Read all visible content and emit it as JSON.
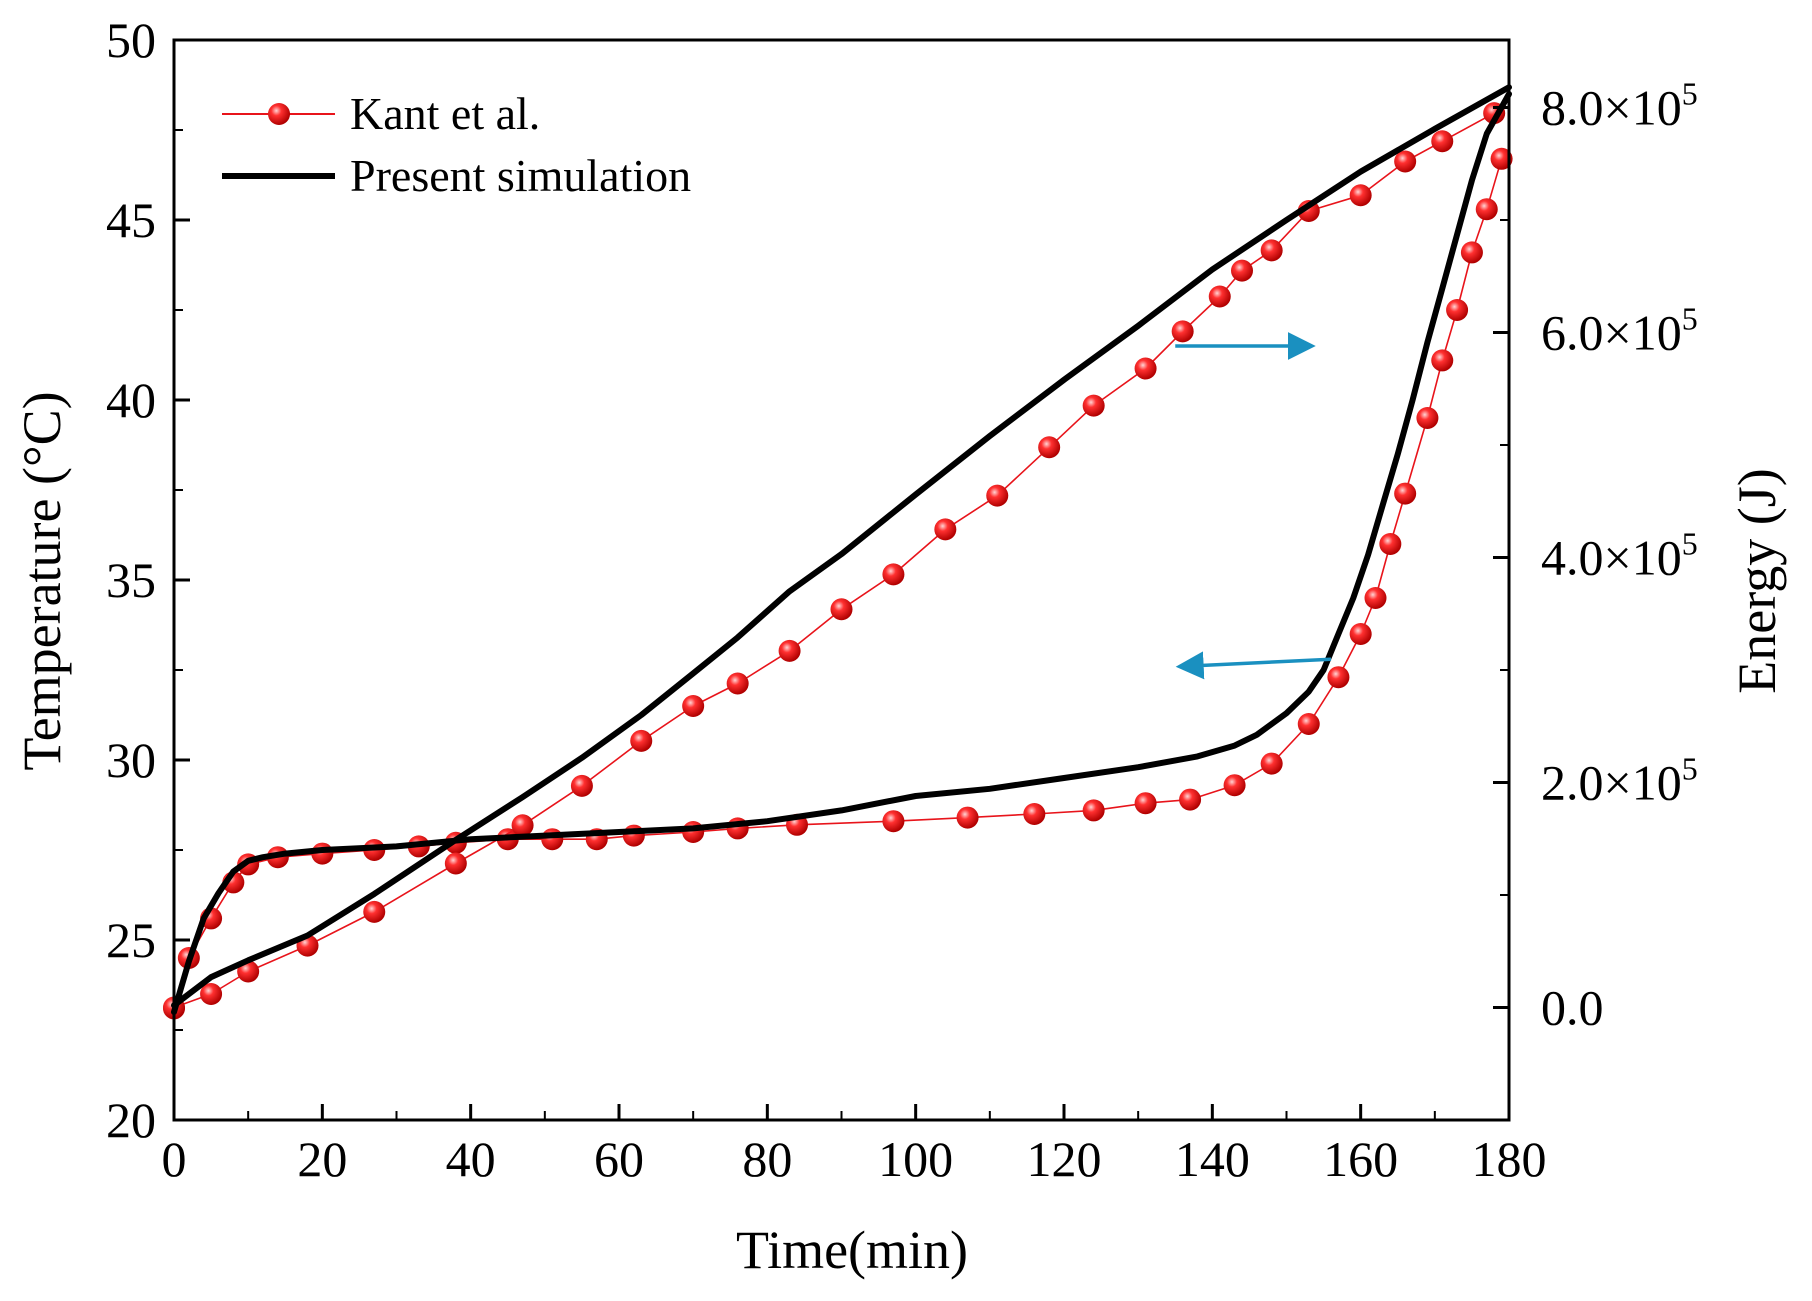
{
  "chart_data": {
    "type": "line",
    "title": "",
    "xlabel": "Time(min)",
    "ylabel": "Temperature (°C)",
    "y2label": "Energy (J)",
    "xlim": [
      0,
      180
    ],
    "ylim": [
      20,
      50
    ],
    "y2lim": [
      -100000,
      860000
    ],
    "xticks": [
      0,
      20,
      40,
      60,
      80,
      100,
      120,
      140,
      160,
      180
    ],
    "xtick_labels": [
      "0",
      "20",
      "40",
      "60",
      "80",
      "100",
      "120",
      "140",
      "160",
      "180"
    ],
    "yticks": [
      20,
      25,
      30,
      35,
      40,
      45,
      50
    ],
    "ytick_labels": [
      "20",
      "25",
      "30",
      "35",
      "40",
      "45",
      "50"
    ],
    "y2ticks": [
      0,
      200000,
      400000,
      600000,
      800000
    ],
    "y2tick_labels": [
      {
        "mantissa": "0.0",
        "exponent": ""
      },
      {
        "mantissa": "2.0×10",
        "exponent": "5"
      },
      {
        "mantissa": "4.0×10",
        "exponent": "5"
      },
      {
        "mantissa": "6.0×10",
        "exponent": "5"
      },
      {
        "mantissa": "8.0×10",
        "exponent": "5"
      }
    ],
    "legend": {
      "position": "top-left",
      "entries": [
        "Kant et al.",
        "Present simulation"
      ]
    },
    "colors": {
      "kant": "#e8141b",
      "simulation": "#000000",
      "arrow": "#1a90c0"
    },
    "series": [
      {
        "name": "Kant et al.",
        "axis": "left",
        "quantity": "temperature",
        "style": "markers+thin-line",
        "x": [
          0,
          2,
          5,
          8,
          10,
          14,
          20,
          27,
          33,
          38,
          45,
          51,
          57,
          62,
          70,
          76,
          84,
          97,
          107,
          116,
          124,
          131,
          137,
          143,
          148,
          153,
          157,
          160,
          162,
          164,
          166,
          169,
          171,
          173,
          175,
          177,
          179
        ],
        "y": [
          23.1,
          24.5,
          25.6,
          26.6,
          27.1,
          27.3,
          27.4,
          27.5,
          27.6,
          27.7,
          27.8,
          27.8,
          27.8,
          27.9,
          28.0,
          28.1,
          28.2,
          28.3,
          28.4,
          28.5,
          28.6,
          28.8,
          28.9,
          29.3,
          29.9,
          31.0,
          32.3,
          33.5,
          34.5,
          36.0,
          37.4,
          39.5,
          41.1,
          42.5,
          44.1,
          45.3,
          46.7
        ]
      },
      {
        "name": "Kant et al.",
        "axis": "right",
        "quantity": "energy",
        "style": "markers+thin-line",
        "x": [
          0,
          5,
          10,
          18,
          27,
          38,
          47,
          55,
          63,
          70,
          76,
          83,
          90,
          97,
          104,
          111,
          118,
          124,
          131,
          136,
          141,
          144,
          148,
          153,
          160,
          166,
          171,
          178
        ],
        "y": [
          0,
          12000,
          32000,
          55000,
          85000,
          128000,
          162000,
          197000,
          237000,
          268000,
          288000,
          317000,
          354000,
          385000,
          425000,
          455000,
          498000,
          535000,
          568000,
          601000,
          632000,
          655000,
          673000,
          708000,
          722000,
          752000,
          770000,
          795000
        ]
      },
      {
        "name": "Present simulation",
        "axis": "left",
        "quantity": "temperature",
        "style": "line",
        "x": [
          0,
          2,
          4,
          6,
          8,
          10,
          12,
          15,
          20,
          30,
          40,
          50,
          60,
          70,
          80,
          90,
          100,
          110,
          120,
          130,
          138,
          143,
          146,
          150,
          153,
          155,
          157,
          159,
          161,
          163,
          165,
          167,
          169,
          171,
          173,
          175,
          177,
          180
        ],
        "y": [
          23.0,
          24.4,
          25.6,
          26.3,
          26.9,
          27.2,
          27.3,
          27.4,
          27.5,
          27.6,
          27.8,
          27.9,
          28.0,
          28.1,
          28.3,
          28.6,
          29.0,
          29.2,
          29.5,
          29.8,
          30.1,
          30.4,
          30.7,
          31.3,
          31.9,
          32.5,
          33.5,
          34.5,
          35.7,
          37.1,
          38.5,
          40.0,
          41.6,
          43.1,
          44.6,
          46.1,
          47.4,
          48.5
        ]
      },
      {
        "name": "Present simulation",
        "axis": "right",
        "quantity": "energy",
        "style": "line",
        "x": [
          0,
          5,
          10,
          18,
          27,
          38,
          47,
          55,
          63,
          70,
          76,
          83,
          90,
          100,
          110,
          120,
          130,
          140,
          150,
          160,
          170,
          180
        ],
        "y": [
          2000,
          27000,
          42000,
          64000,
          101000,
          149000,
          187000,
          222000,
          260000,
          297000,
          329000,
          370000,
          403000,
          456000,
          508000,
          558000,
          606000,
          656000,
          700000,
          743000,
          781000,
          818000
        ]
      }
    ],
    "annotations": [
      {
        "type": "arrow",
        "meaning": "upper curve refers to right axis (Energy)",
        "direction": "right",
        "from": [
          135,
          41.5
        ],
        "to": [
          153,
          41.5
        ]
      },
      {
        "type": "arrow",
        "meaning": "lower curve refers to left axis (Temperature)",
        "direction": "left",
        "from": [
          156,
          32.8
        ],
        "to": [
          136,
          32.6
        ]
      }
    ]
  }
}
